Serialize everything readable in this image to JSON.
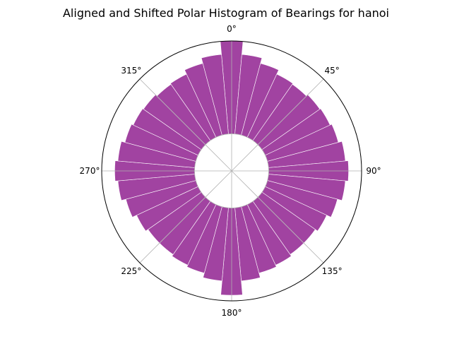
{
  "chart_data": {
    "type": "bar",
    "polar": true,
    "title": "Aligned and Shifted Polar Histogram of Bearings for hanoi",
    "theta_zero_location": "N",
    "theta_direction": "clockwise",
    "angle_ticks": [
      "0°",
      "45°",
      "90°",
      "135°",
      "180°",
      "225°",
      "270°",
      "315°"
    ],
    "bin_width_deg": 10,
    "bin_centers_deg": [
      0,
      10,
      20,
      30,
      40,
      50,
      60,
      70,
      80,
      90,
      100,
      110,
      120,
      130,
      140,
      150,
      160,
      170,
      180,
      190,
      200,
      210,
      220,
      230,
      240,
      250,
      260,
      270,
      280,
      290,
      300,
      310,
      320,
      330,
      340,
      350
    ],
    "values": [
      1.0,
      0.86,
      0.8,
      0.75,
      0.74,
      0.76,
      0.77,
      0.79,
      0.83,
      0.86,
      0.83,
      0.78,
      0.73,
      0.7,
      0.7,
      0.72,
      0.74,
      0.79,
      0.94,
      0.79,
      0.74,
      0.72,
      0.7,
      0.7,
      0.73,
      0.78,
      0.83,
      0.86,
      0.83,
      0.79,
      0.77,
      0.76,
      0.74,
      0.75,
      0.8,
      0.86
    ],
    "rlim": [
      -0.4,
      1.0
    ],
    "bar_color": "#993399",
    "grid": true,
    "radial_tick_labels": false
  }
}
